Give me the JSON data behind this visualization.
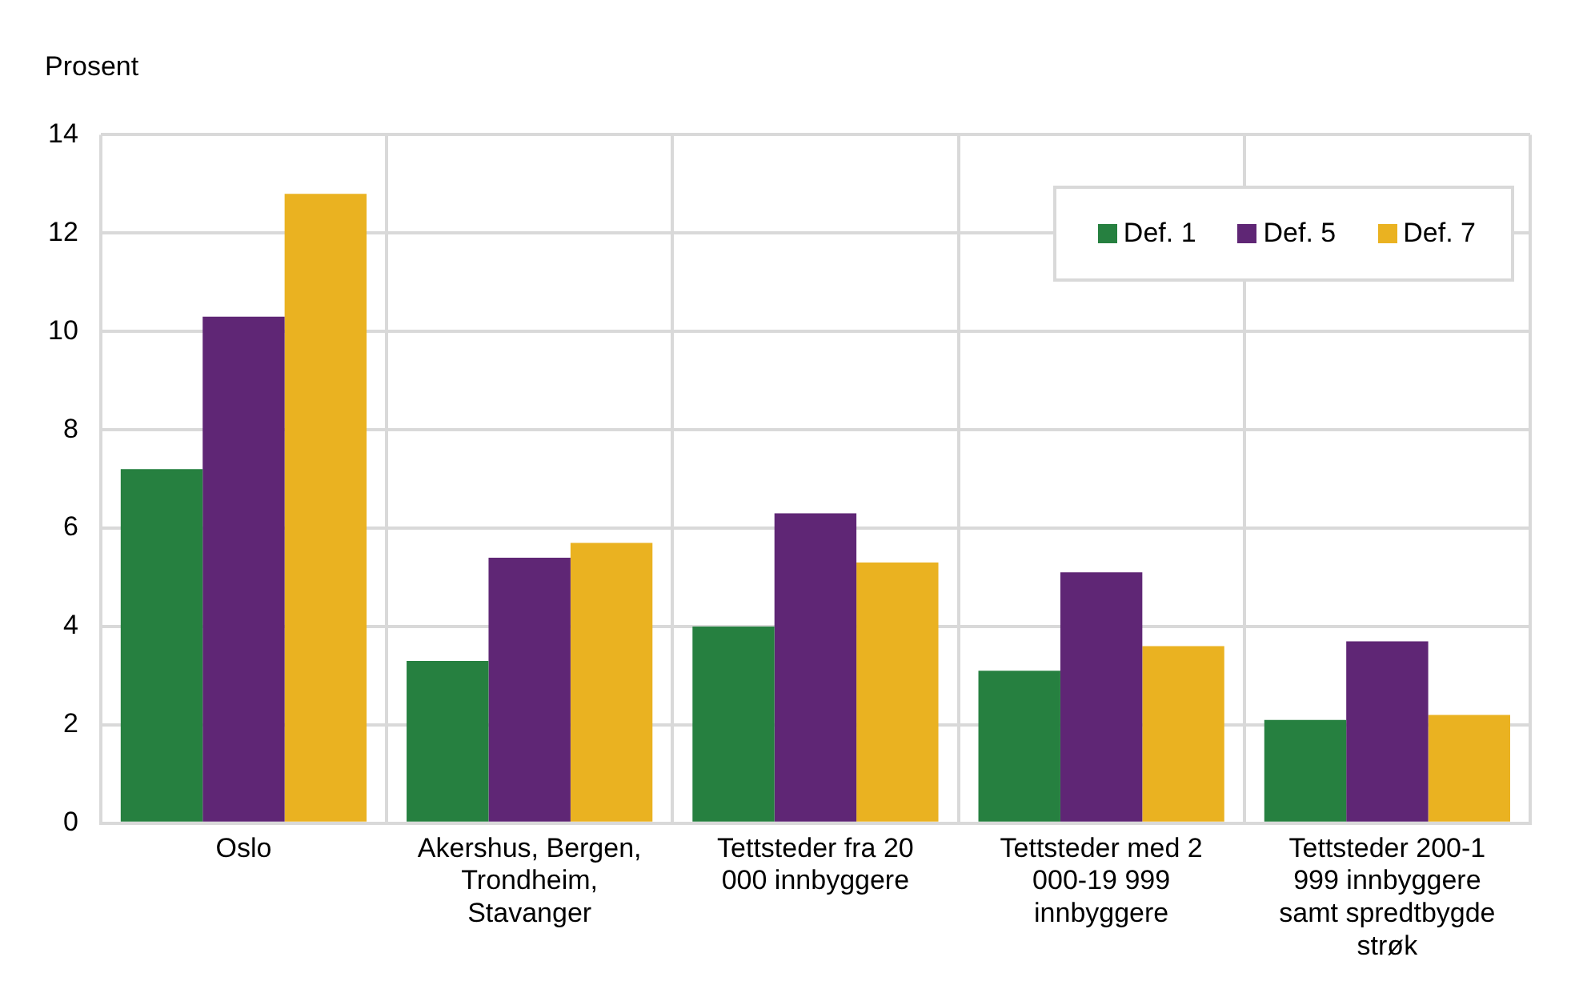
{
  "chart_data": {
    "type": "bar",
    "ylabel": "Prosent",
    "categories": [
      "Oslo",
      "Akershus, Bergen, Trondheim, Stavanger",
      "Tettsteder fra 20 000 innbyggere",
      "Tettsteder med 2 000-19 999 innbyggere",
      "Tettsteder 200-1 999 innbyggere samt spredtbygde strøk"
    ],
    "series": [
      {
        "name": "Def. 1",
        "color": "#268040",
        "values": [
          7.2,
          3.3,
          4.0,
          3.1,
          2.1
        ]
      },
      {
        "name": "Def. 5",
        "color": "#5f2675",
        "values": [
          10.3,
          5.4,
          6.3,
          5.1,
          3.7
        ]
      },
      {
        "name": "Def. 7",
        "color": "#eab221",
        "values": [
          12.8,
          5.7,
          5.3,
          3.6,
          2.2
        ]
      }
    ],
    "ylim": [
      0,
      14
    ],
    "yticks": [
      0,
      2,
      4,
      6,
      8,
      10,
      12,
      14
    ],
    "grid": true,
    "legend": "top right"
  }
}
